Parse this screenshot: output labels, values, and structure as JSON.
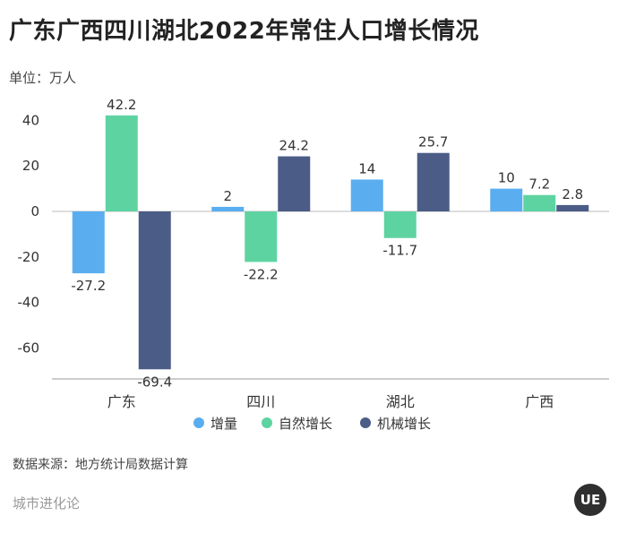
{
  "title": "广东广西四川湖北2022年常住人口增长情况",
  "unit": "单位：万人",
  "source": "数据来源：地方统计局数据计算",
  "brand": "城市进化论",
  "logo_text": "UE",
  "chart_data": {
    "type": "bar",
    "categories": [
      "广东",
      "四川",
      "湖北",
      "广西"
    ],
    "series": [
      {
        "name": "增量",
        "values": [
          -27.2,
          2,
          14,
          10
        ],
        "color": "#5aaef0"
      },
      {
        "name": "自然增长",
        "values": [
          42.2,
          -22.2,
          -11.7,
          7.2
        ],
        "color": "#5ed3a2"
      },
      {
        "name": "机械增长",
        "values": [
          -69.4,
          24.2,
          25.7,
          2.8
        ],
        "color": "#4b5c86"
      }
    ],
    "yticks": [
      40,
      20,
      0,
      -20,
      -40,
      -60
    ],
    "ylim": [
      -75,
      45
    ],
    "legend_position": "bottom",
    "grid": false
  }
}
